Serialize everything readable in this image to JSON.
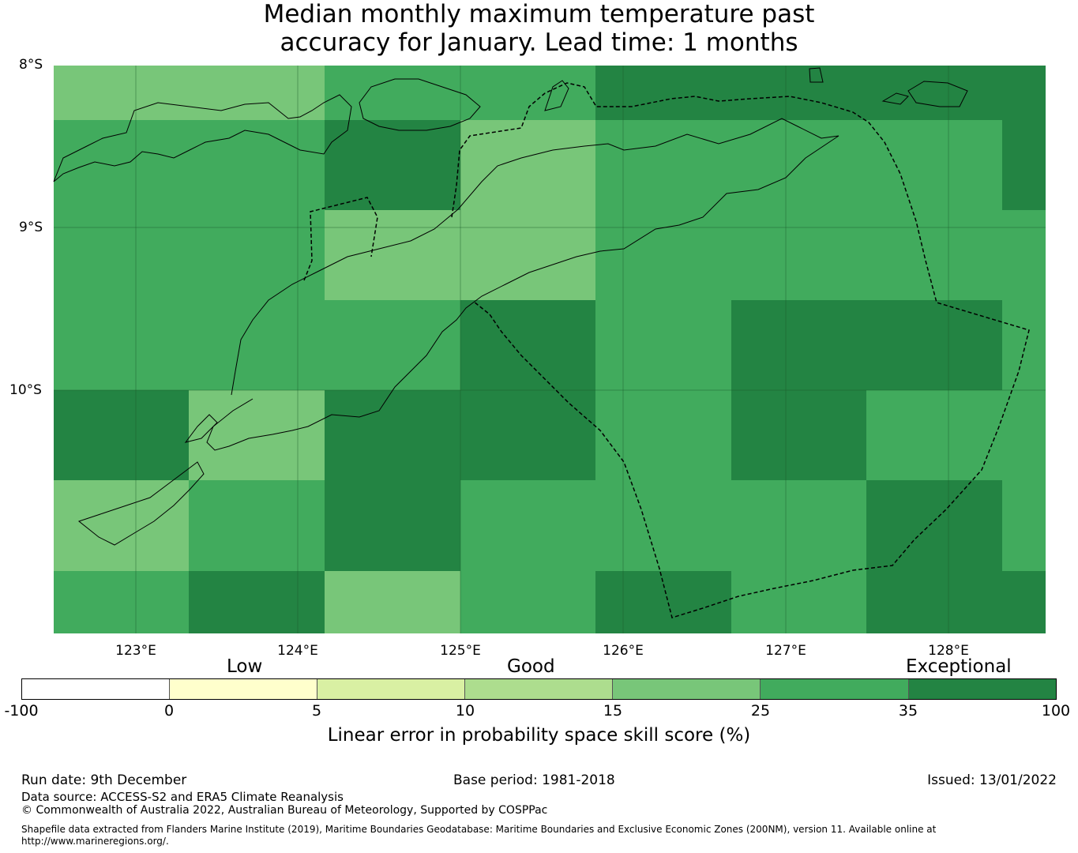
{
  "title_line1": "Median monthly maximum temperature past",
  "title_line2": "accuracy for January. Lead time: 1 months",
  "latitude_labels": [
    "8°S",
    "9°S",
    "10°S"
  ],
  "longitude_labels": [
    "123°E",
    "124°E",
    "125°E",
    "126°E",
    "127°E",
    "128°E"
  ],
  "skill_grid": [
    [
      15,
      15,
      25,
      25,
      35,
      35,
      35,
      35
    ],
    [
      25,
      25,
      35,
      15,
      25,
      25,
      25,
      35
    ],
    [
      25,
      25,
      15,
      15,
      25,
      25,
      25,
      25
    ],
    [
      25,
      25,
      25,
      35,
      25,
      35,
      35,
      25
    ],
    [
      35,
      15,
      35,
      35,
      25,
      35,
      25,
      25
    ],
    [
      15,
      25,
      35,
      25,
      25,
      25,
      35,
      25
    ],
    [
      25,
      35,
      15,
      25,
      35,
      25,
      35,
      35
    ]
  ],
  "categories": {
    "low": "Low",
    "good": "Good",
    "exceptional": "Exceptional"
  },
  "colorbar": {
    "ticks": [
      "-100",
      "0",
      "5",
      "10",
      "15",
      "25",
      "35",
      "100"
    ],
    "colors": [
      "#ffffff",
      "#ffffcc",
      "#d9f0a3",
      "#addd8e",
      "#78c679",
      "#41ab5d",
      "#238443"
    ],
    "title": "Linear error in probability space skill score (%)"
  },
  "footer": {
    "run_date": "Run date: 9th December",
    "base_period": "Base period: 1981-2018",
    "issued": "Issued: 13/01/2022",
    "data_source": "Data source: ACCESS-S2 and ERA5 Climate Reanalysis",
    "copyright": "© Commonwealth of Australia 2022, Australian Bureau of Meteorology, Supported by COSPPac",
    "shapefile_line1": "Shapefile data extracted from Flanders Marine Institute (2019), Maritime Boundaries Geodatabase: Maritime Boundaries and Exclusive Economic Zones (200NM), version 11. Available online at",
    "shapefile_line2": "http://www.marineregions.org/."
  }
}
